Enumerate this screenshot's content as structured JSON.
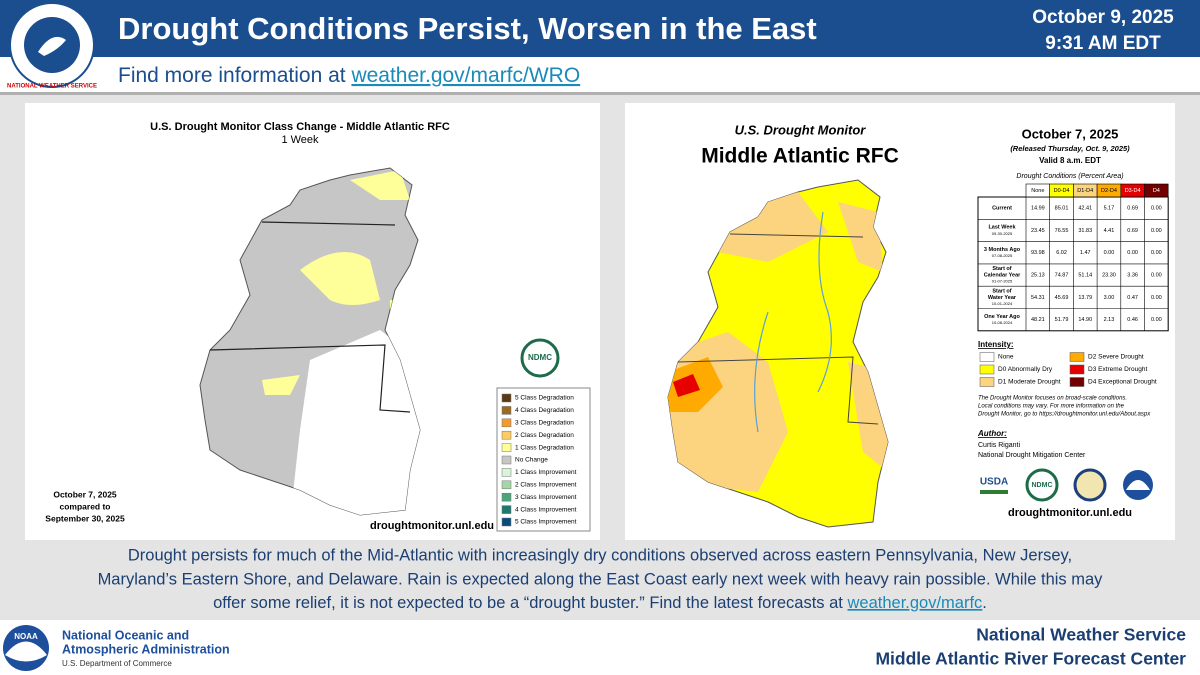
{
  "header": {
    "logo_text": "NATIONAL WEATHER SERVICE",
    "title": "Drought Conditions Persist, Worsen in the East",
    "subtitle_prefix": "Find more information at ",
    "subtitle_link": "weather.gov/marfc/WRO",
    "date": "October 9, 2025",
    "time": "9:31 AM EDT"
  },
  "left_map": {
    "title": "U.S. Drought Monitor Class Change - Middle Atlantic RFC",
    "subtitle": "1 Week",
    "note": [
      "October 7, 2025",
      "compared to",
      "September 30, 2025"
    ],
    "logo": "NDMC",
    "source": "droughtmonitor.unl.edu",
    "legend": [
      {
        "label": "5 Class Degradation",
        "color": "#5a3a14"
      },
      {
        "label": "4 Class Degradation",
        "color": "#9a6a22"
      },
      {
        "label": "3 Class Degradation",
        "color": "#f39a2b"
      },
      {
        "label": "2 Class Degradation",
        "color": "#fccc60"
      },
      {
        "label": "1 Class Degradation",
        "color": "#ffff9a"
      },
      {
        "label": "No Change",
        "color": "#c6c6c6"
      },
      {
        "label": "1 Class Improvement",
        "color": "#d9f5d9"
      },
      {
        "label": "2 Class Improvement",
        "color": "#a3d8a6"
      },
      {
        "label": "3 Class Improvement",
        "color": "#4aa67a"
      },
      {
        "label": "4 Class Improvement",
        "color": "#1e786d"
      },
      {
        "label": "5 Class Improvement",
        "color": "#0b4a7c"
      }
    ]
  },
  "right_map": {
    "title": "U.S. Drought Monitor",
    "region": "Middle Atlantic RFC",
    "date": "October 7, 2025",
    "released": "(Released Thursday, Oct. 9, 2025)",
    "valid": "Valid 8 a.m. EDT",
    "table": {
      "caption": "Drought Conditions (Percent Area)",
      "columns": [
        "None",
        "D0-D4",
        "D1-D4",
        "D2-D4",
        "D3-D4",
        "D4"
      ],
      "column_colors": [
        "#ffffff",
        "#ffff00",
        "#fcd37f",
        "#ffaa00",
        "#e60000",
        "#730000"
      ],
      "rows": [
        {
          "label": [
            "Current"
          ],
          "values": [
            "14.99",
            "85.01",
            "42.41",
            "5.17",
            "0.69",
            "0.00"
          ]
        },
        {
          "label": [
            "Last Week"
          ],
          "date": "09-30-2025",
          "values": [
            "23.45",
            "76.55",
            "31.83",
            "4.41",
            "0.69",
            "0.00"
          ]
        },
        {
          "label": [
            "3 Months Ago"
          ],
          "date": "07-08-2025",
          "values": [
            "93.98",
            "6.02",
            "1.47",
            "0.00",
            "0.00",
            "0.00"
          ]
        },
        {
          "label": [
            "Start of",
            "Calendar Year"
          ],
          "date": "01-07-2025",
          "values": [
            "25.13",
            "74.87",
            "51.14",
            "23.30",
            "3.36",
            "0.00"
          ]
        },
        {
          "label": [
            "Start of",
            "Water Year"
          ],
          "date": "10-01-2024",
          "values": [
            "54.31",
            "45.69",
            "13.79",
            "3.00",
            "0.47",
            "0.00"
          ]
        },
        {
          "label": [
            "One Year Ago"
          ],
          "date": "10-08-2024",
          "values": [
            "48.21",
            "51.79",
            "14.90",
            "2.13",
            "0.46",
            "0.00"
          ]
        }
      ]
    },
    "intensity_title": "Intensity:",
    "intensity": [
      {
        "label": "None",
        "color": "#ffffff"
      },
      {
        "label": "D0 Abnormally Dry",
        "color": "#ffff00"
      },
      {
        "label": "D1 Moderate Drought",
        "color": "#fcd37f"
      },
      {
        "label": "D2 Severe Drought",
        "color": "#ffaa00"
      },
      {
        "label": "D3 Extreme Drought",
        "color": "#e60000"
      },
      {
        "label": "D4 Exceptional Drought",
        "color": "#730000"
      }
    ],
    "note": [
      "The Drought Monitor focuses on broad-scale conditions.",
      "Local conditions may vary. For more information on the",
      "Drought Monitor, go to https://droughtmonitor.unl.edu/About.aspx"
    ],
    "author_title": "Author:",
    "author": "Curtis Riganti",
    "author_org": "National Drought Mitigation Center",
    "logos": [
      "USDA",
      "NDMC"
    ],
    "source": "droughtmonitor.unl.edu"
  },
  "body": {
    "lines": [
      "Drought persists for much of the Mid-Atlantic with increasingly dry conditions observed across eastern Pennsylvania, New Jersey,",
      "Maryland’s Eastern Shore, and Delaware. Rain is expected along the East Coast early next week with heavy rain possible. While this may"
    ],
    "last_line_prefix": "offer some relief, it is not expected to be a “drought  buster.” Find the latest forecasts at ",
    "last_line_link": "weather.gov/marfc",
    "last_line_suffix": "."
  },
  "footer": {
    "noaa_logo": "NOAA",
    "agency": [
      "National Oceanic and",
      "Atmospheric Administration"
    ],
    "department": "U.S. Department of Commerce",
    "office": [
      "National Weather Service",
      "Middle Atlantic River Forecast Center"
    ]
  }
}
